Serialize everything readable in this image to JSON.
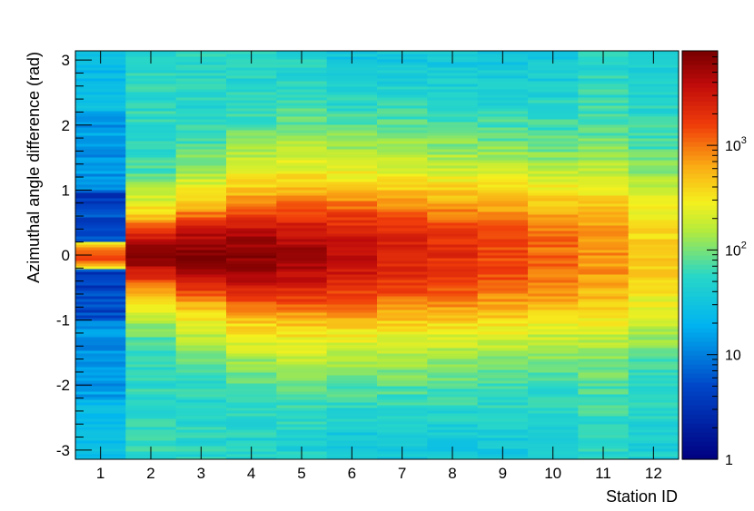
{
  "chart_data": {
    "type": "heatmap",
    "title": "",
    "xlabel": "Station ID",
    "ylabel": "Azimuthal angle difference (rad)",
    "x_categories": [
      "1",
      "2",
      "3",
      "4",
      "5",
      "6",
      "7",
      "8",
      "9",
      "10",
      "11",
      "12"
    ],
    "xlim": [
      0.5,
      12.5
    ],
    "ylim": [
      -3.1416,
      3.1416
    ],
    "y_ticks": [
      "3",
      "2",
      "1",
      "0",
      "-1",
      "-2",
      "-3"
    ],
    "colorbar": {
      "scale": "log",
      "range": [
        1,
        8000
      ],
      "tick_labels": [
        "1",
        "10",
        "10^2",
        "10^3"
      ],
      "palette": "rainbow (dark blue → cyan → yellow → red → dark red)"
    },
    "grid": false,
    "station_profiles": [
      {
        "station": "1",
        "peak_counts": 1500,
        "core_width_rad": 0.08,
        "background_counts": 25,
        "low_region": "|dphi| in 0.2–1.0 rad"
      },
      {
        "station": "2",
        "peak_counts": 5000,
        "core_width_rad": 0.22,
        "background_counts": 60
      },
      {
        "station": "3",
        "peak_counts": 6000,
        "core_width_rad": 0.28,
        "background_counts": 55
      },
      {
        "station": "4",
        "peak_counts": 5500,
        "core_width_rad": 0.35,
        "background_counts": 50
      },
      {
        "station": "5",
        "peak_counts": 4500,
        "core_width_rad": 0.4,
        "background_counts": 48
      },
      {
        "station": "6",
        "peak_counts": 3000,
        "core_width_rad": 0.45,
        "background_counts": 30
      },
      {
        "station": "7",
        "peak_counts": 2200,
        "core_width_rad": 0.48,
        "background_counts": 30
      },
      {
        "station": "8",
        "peak_counts": 1800,
        "core_width_rad": 0.5,
        "background_counts": 30
      },
      {
        "station": "9",
        "peak_counts": 1400,
        "core_width_rad": 0.52,
        "background_counts": 28
      },
      {
        "station": "10",
        "peak_counts": 1000,
        "core_width_rad": 0.55,
        "background_counts": 30
      },
      {
        "station": "11",
        "peak_counts": 700,
        "core_width_rad": 0.6,
        "background_counts": 45
      },
      {
        "station": "12",
        "peak_counts": 350,
        "core_width_rad": 0.65,
        "background_counts": 40
      }
    ]
  }
}
